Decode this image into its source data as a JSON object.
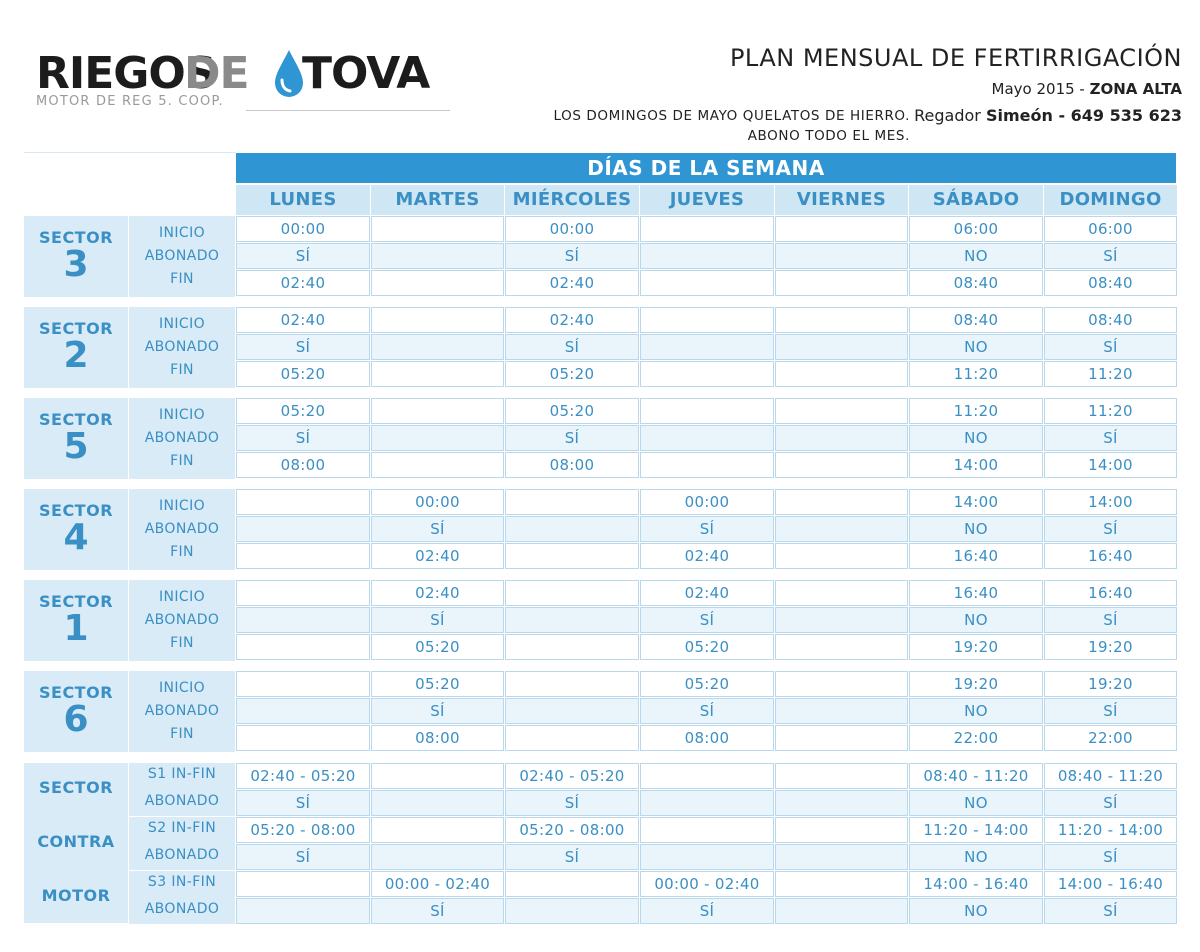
{
  "logo": {
    "part1": "RIEGOS",
    "part2": "DE",
    "part3": "TOVA",
    "subtitle": "MOTOR DE REG 5. COOP."
  },
  "header": {
    "title": "PLAN MENSUAL DE FERTIRRIGACIÓN",
    "date": "Mayo 2015 - ",
    "zone": "ZONA ALTA",
    "regador_label": "Regador ",
    "regador_name": "Simeón - 649 535 623",
    "note_line1": "LOS DOMINGOS DE MAYO QUELATOS DE HIERRO.",
    "note_line2": "ABONO TODO EL MES."
  },
  "colors": {
    "accent": "#2f96d3",
    "light": "#d8ebf7",
    "text": "#3a8fc4"
  },
  "table": {
    "days_title": "DÍAS DE LA SEMANA",
    "days": [
      "LUNES",
      "MARTES",
      "MIÉRCOLES",
      "JUEVES",
      "VIERNES",
      "SÁBADO",
      "DOMINGO"
    ],
    "sector_word": "SECTOR",
    "fields": [
      "INICIO",
      "ABONADO",
      "FIN"
    ],
    "sectors": [
      {
        "number": "3",
        "rows": [
          [
            "00:00",
            "",
            "00:00",
            "",
            "",
            "06:00",
            "06:00"
          ],
          [
            "SÍ",
            "",
            "SÍ",
            "",
            "",
            "NO",
            "SÍ"
          ],
          [
            "02:40",
            "",
            "02:40",
            "",
            "",
            "08:40",
            "08:40"
          ]
        ]
      },
      {
        "number": "2",
        "rows": [
          [
            "02:40",
            "",
            "02:40",
            "",
            "",
            "08:40",
            "08:40"
          ],
          [
            "SÍ",
            "",
            "SÍ",
            "",
            "",
            "NO",
            "SÍ"
          ],
          [
            "05:20",
            "",
            "05:20",
            "",
            "",
            "11:20",
            "11:20"
          ]
        ]
      },
      {
        "number": "5",
        "rows": [
          [
            "05:20",
            "",
            "05:20",
            "",
            "",
            "11:20",
            "11:20"
          ],
          [
            "SÍ",
            "",
            "SÍ",
            "",
            "",
            "NO",
            "SÍ"
          ],
          [
            "08:00",
            "",
            "08:00",
            "",
            "",
            "14:00",
            "14:00"
          ]
        ]
      },
      {
        "number": "4",
        "rows": [
          [
            "",
            "00:00",
            "",
            "00:00",
            "",
            "14:00",
            "14:00"
          ],
          [
            "",
            "SÍ",
            "",
            "SÍ",
            "",
            "NO",
            "SÍ"
          ],
          [
            "",
            "02:40",
            "",
            "02:40",
            "",
            "16:40",
            "16:40"
          ]
        ]
      },
      {
        "number": "1",
        "rows": [
          [
            "",
            "02:40",
            "",
            "02:40",
            "",
            "16:40",
            "16:40"
          ],
          [
            "",
            "SÍ",
            "",
            "SÍ",
            "",
            "NO",
            "SÍ"
          ],
          [
            "",
            "05:20",
            "",
            "05:20",
            "",
            "19:20",
            "19:20"
          ]
        ]
      },
      {
        "number": "6",
        "rows": [
          [
            "",
            "05:20",
            "",
            "05:20",
            "",
            "19:20",
            "19:20"
          ],
          [
            "",
            "SÍ",
            "",
            "SÍ",
            "",
            "NO",
            "SÍ"
          ],
          [
            "",
            "08:00",
            "",
            "08:00",
            "",
            "22:00",
            "22:00"
          ]
        ]
      }
    ],
    "motor": {
      "labels": [
        "SECTOR",
        "CONTRA",
        "MOTOR"
      ],
      "fields": [
        "S1 IN-FIN",
        "ABONADO",
        "S2 IN-FIN",
        "ABONADO",
        "S3 IN-FIN",
        "ABONADO"
      ],
      "rows": [
        [
          "02:40 - 05:20",
          "",
          "02:40 - 05:20",
          "",
          "",
          "08:40 - 11:20",
          "08:40 - 11:20"
        ],
        [
          "SÍ",
          "",
          "SÍ",
          "",
          "",
          "NO",
          "SÍ"
        ],
        [
          "05:20 - 08:00",
          "",
          "05:20 - 08:00",
          "",
          "",
          "11:20 - 14:00",
          "11:20 - 14:00"
        ],
        [
          "SÍ",
          "",
          "SÍ",
          "",
          "",
          "NO",
          "SÍ"
        ],
        [
          "",
          "00:00 - 02:40",
          "",
          "00:00 - 02:40",
          "",
          "14:00 - 16:40",
          "14:00 - 16:40"
        ],
        [
          "",
          "SÍ",
          "",
          "SÍ",
          "",
          "NO",
          "SÍ"
        ]
      ]
    }
  }
}
